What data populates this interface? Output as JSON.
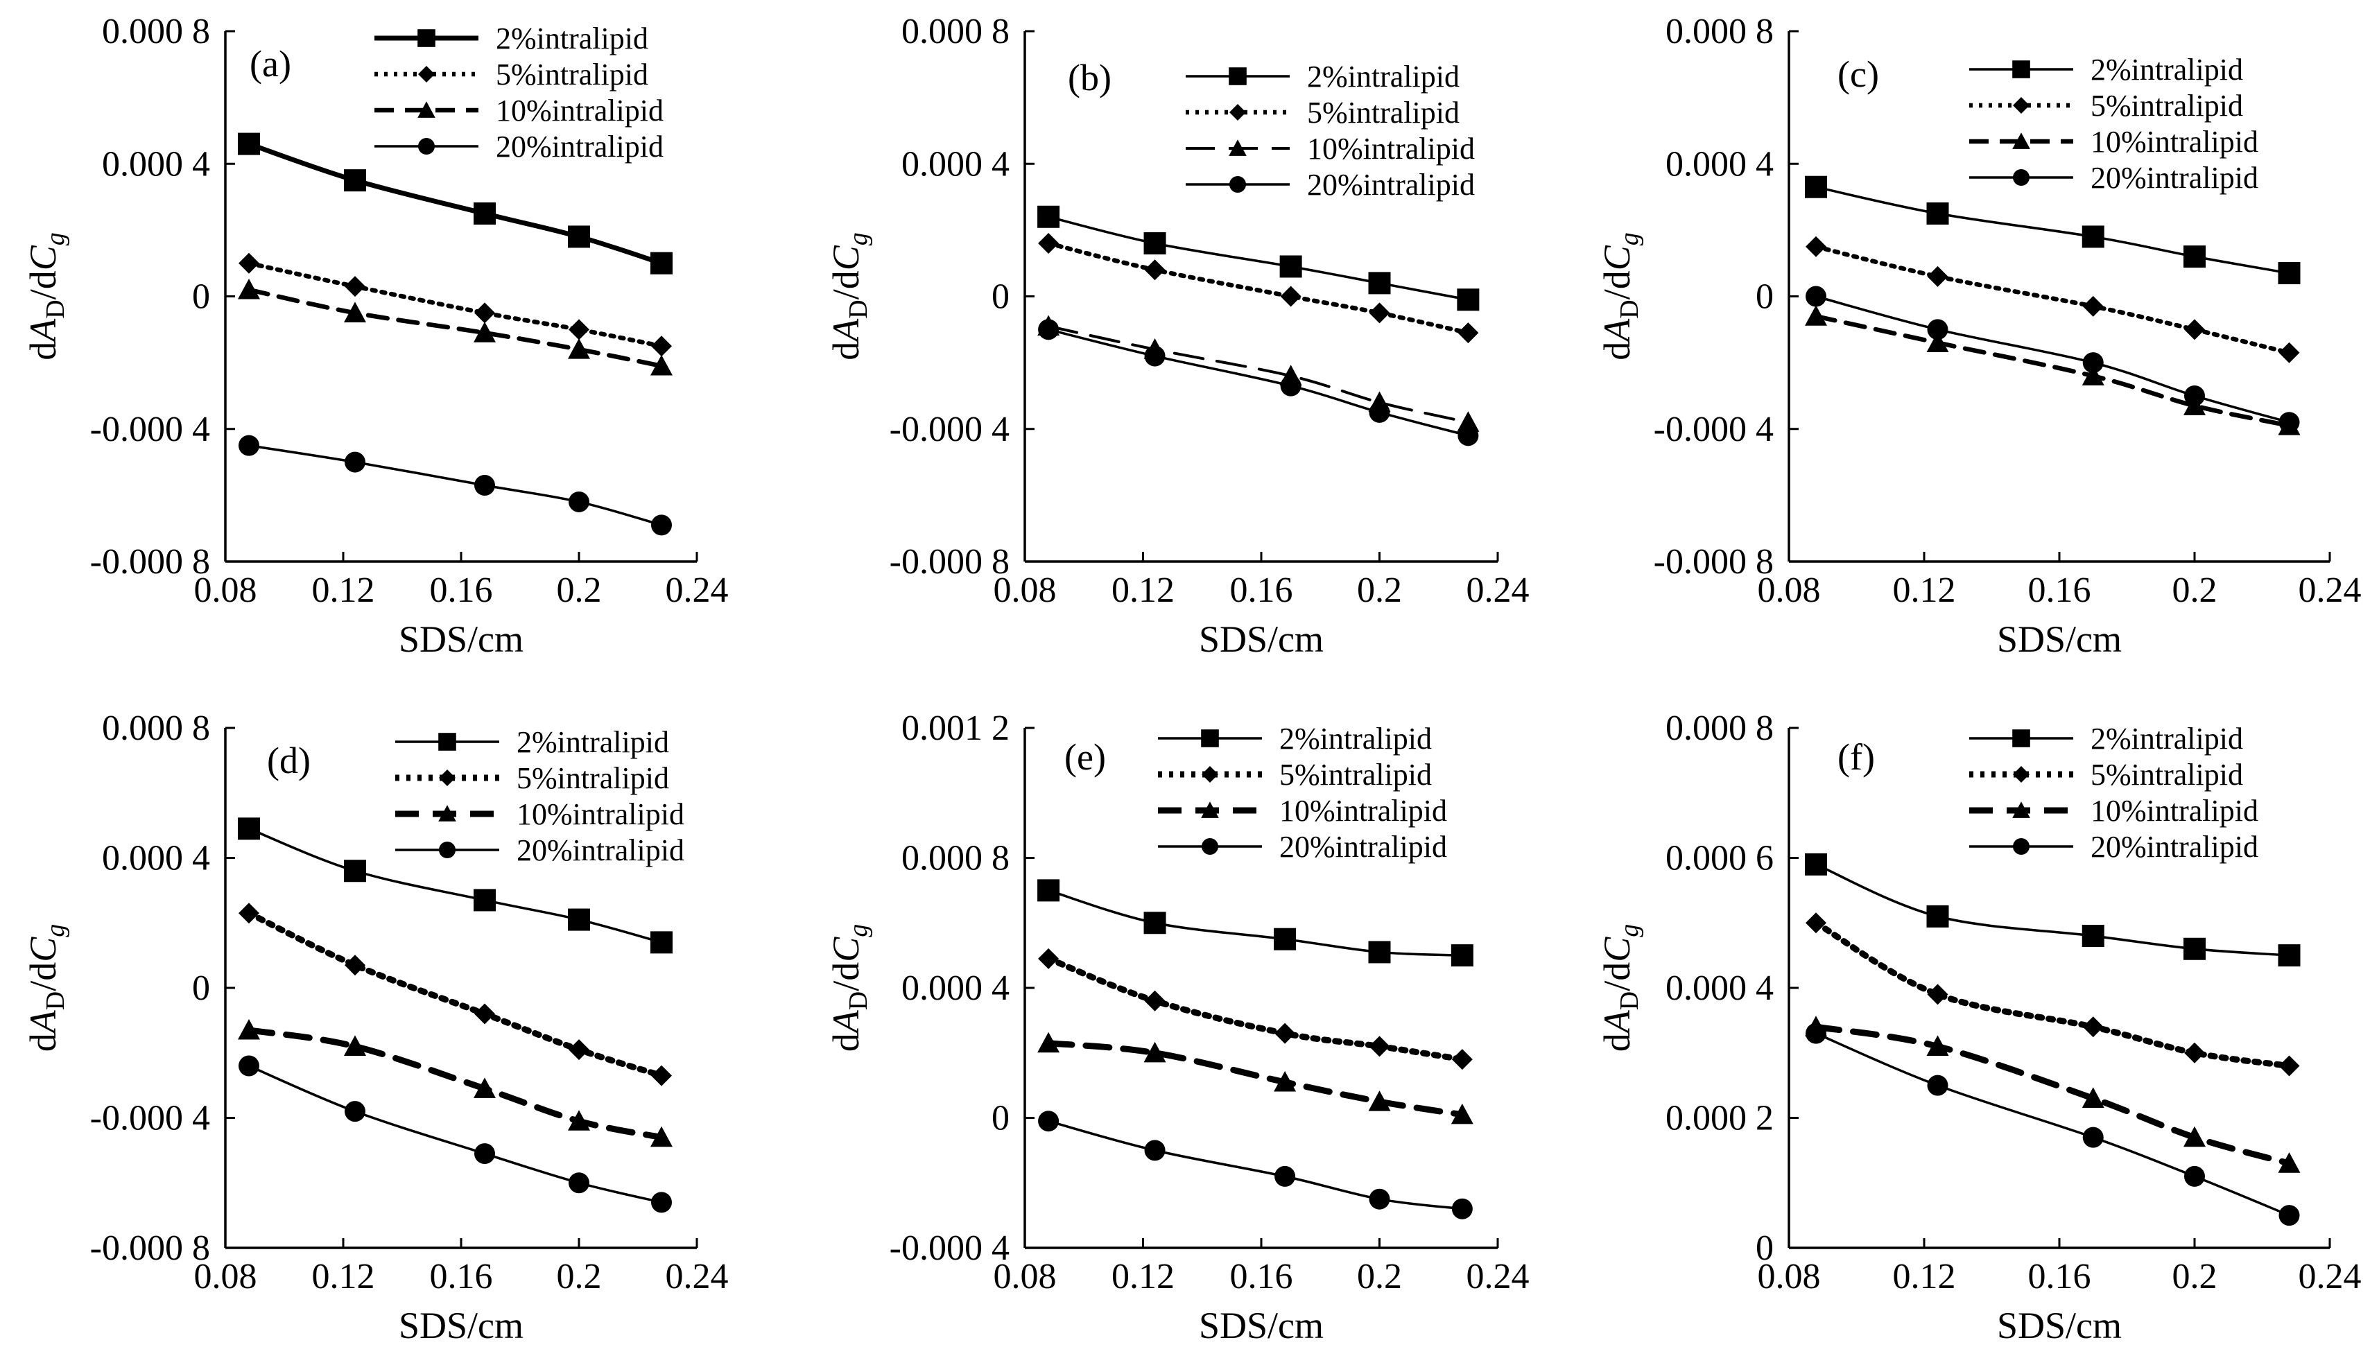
{
  "chart_data": [
    {
      "type": "line",
      "panel_label": "(a)",
      "x": [
        0.088,
        0.124,
        0.168,
        0.2,
        0.228
      ],
      "xlim": [
        0.08,
        0.24
      ],
      "xticks": [
        "0.08",
        "0.12",
        "0.16",
        "0.2",
        "0.24"
      ],
      "ylim": [
        -0.0008,
        0.0008
      ],
      "yticks": [
        "-0.000 8",
        "-0.000 4",
        "0",
        "0.000 4",
        "0.000 8"
      ],
      "xlabel": "SDS/cm",
      "ylabel": {
        "base": "d",
        "a": "A",
        "a_sub": "D",
        "sep": "/d",
        "c": "C",
        "c_sub": "g"
      },
      "legend": "top-right",
      "series": [
        {
          "name": "2%intralipid",
          "marker": "square",
          "line": "solid-thick",
          "values": [
            0.00046,
            0.00035,
            0.00025,
            0.00018,
            0.0001
          ]
        },
        {
          "name": "5%intralipid",
          "marker": "diamond",
          "line": "dotted",
          "values": [
            0.0001,
            3e-05,
            -5e-05,
            -0.0001,
            -0.00015
          ]
        },
        {
          "name": "10%intralipid",
          "marker": "triangle",
          "line": "dashed",
          "values": [
            2e-05,
            -5e-05,
            -0.00011,
            -0.00016,
            -0.00021
          ]
        },
        {
          "name": "20%intralipid",
          "marker": "circle",
          "line": "solid",
          "values": [
            -0.00045,
            -0.0005,
            -0.00057,
            -0.00062,
            -0.00069
          ]
        }
      ]
    },
    {
      "type": "line",
      "panel_label": "(b)",
      "x": [
        0.088,
        0.124,
        0.17,
        0.2,
        0.23
      ],
      "xlim": [
        0.08,
        0.24
      ],
      "xticks": [
        "0.08",
        "0.12",
        "0.16",
        "0.2",
        "0.24"
      ],
      "ylim": [
        -0.0008,
        0.0008
      ],
      "yticks": [
        "-0.000 8",
        "-0.000 4",
        "0",
        "0.000 4",
        "0.000 8"
      ],
      "xlabel": "SDS/cm",
      "ylabel": {
        "base": "d",
        "a": "A",
        "a_sub": "D",
        "sep": "/d",
        "c": "C",
        "c_sub": "g"
      },
      "legend": "top-right",
      "series": [
        {
          "name": "2%intralipid",
          "marker": "square",
          "line": "solid",
          "values": [
            0.00024,
            0.00016,
            9e-05,
            4e-05,
            -1e-05
          ]
        },
        {
          "name": "5%intralipid",
          "marker": "diamond",
          "line": "dotted",
          "values": [
            0.00016,
            8e-05,
            0.0,
            -5e-05,
            -0.00011
          ]
        },
        {
          "name": "10%intralipid",
          "marker": "triangle",
          "line": "long-dashed",
          "values": [
            -9e-05,
            -0.00016,
            -0.00024,
            -0.00032,
            -0.00038
          ]
        },
        {
          "name": "20%intralipid",
          "marker": "circle",
          "line": "solid",
          "values": [
            -0.0001,
            -0.00018,
            -0.00027,
            -0.00035,
            -0.00042
          ]
        }
      ]
    },
    {
      "type": "line",
      "panel_label": "(c)",
      "x": [
        0.088,
        0.124,
        0.17,
        0.2,
        0.228
      ],
      "xlim": [
        0.08,
        0.24
      ],
      "xticks": [
        "0.08",
        "0.12",
        "0.16",
        "0.2",
        "0.24"
      ],
      "ylim": [
        -0.0008,
        0.0008
      ],
      "yticks": [
        "-0.000 8",
        "-0.000 4",
        "0",
        "0.000 4",
        "0.000 8"
      ],
      "xlabel": "SDS/cm",
      "ylabel": {
        "base": "d",
        "a": "A",
        "a_sub": "D",
        "sep": "/d",
        "c": "C",
        "c_sub": "g"
      },
      "legend": "top-right",
      "series": [
        {
          "name": "2%intralipid",
          "marker": "square",
          "line": "solid",
          "values": [
            0.00033,
            0.00025,
            0.00018,
            0.00012,
            7e-05
          ]
        },
        {
          "name": "5%intralipid",
          "marker": "diamond",
          "line": "dotted",
          "values": [
            0.00015,
            6e-05,
            -3e-05,
            -0.0001,
            -0.00017
          ]
        },
        {
          "name": "10%intralipid",
          "marker": "triangle",
          "line": "dashed",
          "values": [
            -6e-05,
            -0.00014,
            -0.00024,
            -0.00033,
            -0.00039
          ]
        },
        {
          "name": "20%intralipid",
          "marker": "circle",
          "line": "solid",
          "values": [
            0.0,
            -0.0001,
            -0.0002,
            -0.0003,
            -0.00038
          ]
        }
      ]
    },
    {
      "type": "line",
      "panel_label": "(d)",
      "x": [
        0.088,
        0.124,
        0.168,
        0.2,
        0.228
      ],
      "xlim": [
        0.08,
        0.24
      ],
      "xticks": [
        "0.08",
        "0.12",
        "0.16",
        "0.2",
        "0.24"
      ],
      "ylim": [
        -0.0008,
        0.0008
      ],
      "yticks": [
        "-0.000 8",
        "-0.000 4",
        "0",
        "0.000 4",
        "0.000 8"
      ],
      "xlabel": "SDS/cm",
      "ylabel": {
        "base": "d",
        "a": "A",
        "a_sub": "D",
        "sep": "/d",
        "c": "C",
        "c_sub": "g"
      },
      "legend": "top-right",
      "series": [
        {
          "name": "2%intralipid",
          "marker": "square",
          "line": "solid",
          "values": [
            0.00049,
            0.00036,
            0.00027,
            0.00021,
            0.00014
          ]
        },
        {
          "name": "5%intralipid",
          "marker": "diamond",
          "line": "dotted-thick",
          "values": [
            0.00023,
            7e-05,
            -8e-05,
            -0.00019,
            -0.00027
          ]
        },
        {
          "name": "10%intralipid",
          "marker": "triangle",
          "line": "dashed-thick",
          "values": [
            -0.00013,
            -0.00018,
            -0.00031,
            -0.00041,
            -0.00046
          ]
        },
        {
          "name": "20%intralipid",
          "marker": "circle",
          "line": "solid",
          "values": [
            -0.00024,
            -0.00038,
            -0.00051,
            -0.0006,
            -0.00066
          ]
        }
      ]
    },
    {
      "type": "line",
      "panel_label": "(e)",
      "x": [
        0.088,
        0.124,
        0.168,
        0.2,
        0.228
      ],
      "xlim": [
        0.08,
        0.24
      ],
      "xticks": [
        "0.08",
        "0.12",
        "0.16",
        "0.2",
        "0.24"
      ],
      "ylim": [
        -0.0004,
        0.0012
      ],
      "yticks": [
        "-0.000 4",
        "0",
        "0.000 4",
        "0.000 8",
        "0.001 2"
      ],
      "xlabel": "SDS/cm",
      "ylabel": {
        "base": "d",
        "a": "A",
        "a_sub": "D",
        "sep": "/d",
        "c": "C",
        "c_sub": "g"
      },
      "legend": "top-right",
      "series": [
        {
          "name": "2%intralipid",
          "marker": "square",
          "line": "solid",
          "values": [
            0.0007,
            0.0006,
            0.00055,
            0.00051,
            0.0005
          ]
        },
        {
          "name": "5%intralipid",
          "marker": "diamond",
          "line": "dotted-thick",
          "values": [
            0.00049,
            0.00036,
            0.00026,
            0.00022,
            0.00018
          ]
        },
        {
          "name": "10%intralipid",
          "marker": "triangle",
          "line": "dashed-thick",
          "values": [
            0.00023,
            0.0002,
            0.00011,
            5e-05,
            1e-05
          ]
        },
        {
          "name": "20%intralipid",
          "marker": "circle",
          "line": "solid",
          "values": [
            -1e-05,
            -0.0001,
            -0.00018,
            -0.00025,
            -0.00028
          ]
        }
      ]
    },
    {
      "type": "line",
      "panel_label": "(f)",
      "x": [
        0.088,
        0.124,
        0.17,
        0.2,
        0.228
      ],
      "xlim": [
        0.08,
        0.24
      ],
      "xticks": [
        "0.08",
        "0.12",
        "0.16",
        "0.2",
        "0.24"
      ],
      "ylim": [
        0,
        0.0008
      ],
      "yticks": [
        "0",
        "0.000 2",
        "0.000 4",
        "0.000 6",
        "0.000 8"
      ],
      "xlabel": "SDS/cm",
      "ylabel": {
        "base": "d",
        "a": "A",
        "a_sub": "D",
        "sep": "/d",
        "c": "C",
        "c_sub": "g"
      },
      "legend": "top-right",
      "series": [
        {
          "name": "2%intralipid",
          "marker": "square",
          "line": "solid",
          "values": [
            0.00059,
            0.00051,
            0.00048,
            0.00046,
            0.00045
          ]
        },
        {
          "name": "5%intralipid",
          "marker": "diamond",
          "line": "dotted-thick",
          "values": [
            0.0005,
            0.00039,
            0.00034,
            0.0003,
            0.00028
          ]
        },
        {
          "name": "10%intralipid",
          "marker": "triangle",
          "line": "dashed-thick",
          "values": [
            0.00034,
            0.00031,
            0.00023,
            0.00017,
            0.00013
          ]
        },
        {
          "name": "20%intralipid",
          "marker": "circle",
          "line": "solid",
          "values": [
            0.00033,
            0.00025,
            0.00017,
            0.00011,
            5e-05
          ]
        }
      ]
    }
  ]
}
